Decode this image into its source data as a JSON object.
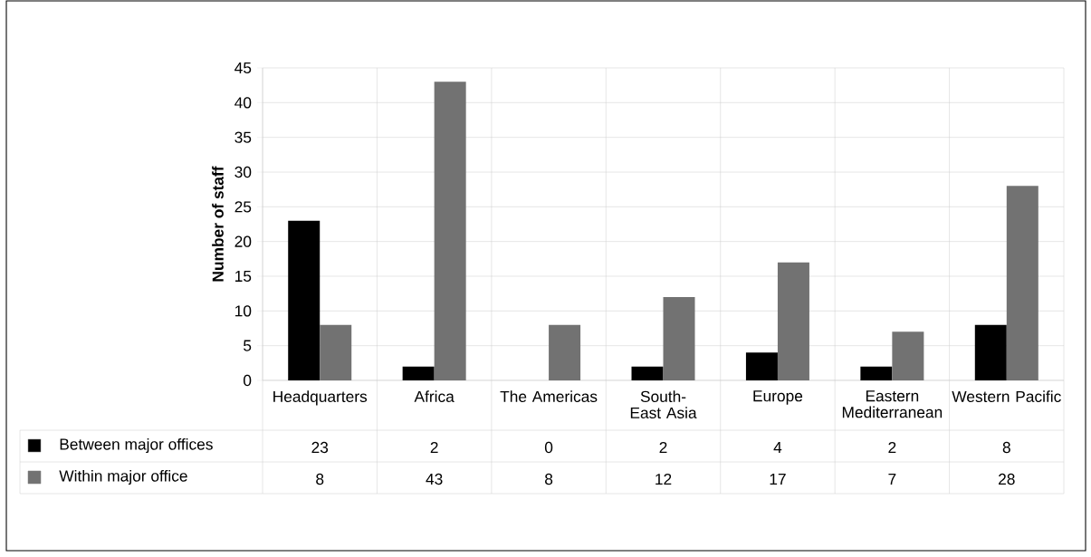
{
  "chart_data": {
    "type": "bar",
    "ylabel": "Number of staff",
    "categories": [
      "Headquarters",
      "Africa",
      "The Americas",
      "South-East Asia",
      "Europe",
      "Eastern Mediterranean",
      "Western Pacific"
    ],
    "series": [
      {
        "name": "Between major offices",
        "color": "#000000",
        "values": [
          23,
          2,
          0,
          2,
          4,
          2,
          8
        ]
      },
      {
        "name": "Within major office",
        "color": "#727272",
        "values": [
          8,
          43,
          8,
          12,
          17,
          7,
          28
        ]
      }
    ],
    "ylim": [
      0,
      45
    ],
    "yticks": [
      0,
      5,
      10,
      15,
      20,
      25,
      30,
      35,
      40,
      45
    ],
    "grid": true,
    "legend": "bottom",
    "data_labels": true
  }
}
